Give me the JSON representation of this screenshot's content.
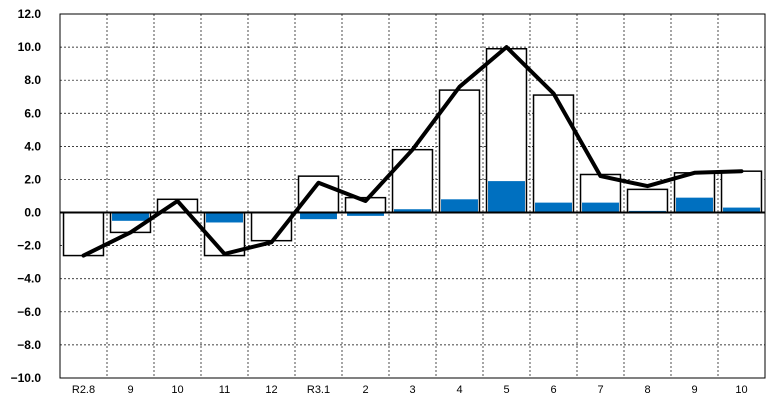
{
  "chart_data": {
    "type": "bar",
    "title": "",
    "xlabel": "",
    "ylabel": "",
    "categories": [
      "R2.8",
      "9",
      "10",
      "11",
      "12",
      "R3.1",
      "2",
      "3",
      "4",
      "5",
      "6",
      "7",
      "8",
      "9",
      "10"
    ],
    "ylim": [
      -10,
      12
    ],
    "yticks": [
      12,
      10,
      8,
      6,
      4,
      2,
      0,
      -2,
      -4,
      -6,
      -8,
      -10
    ],
    "ytick_labels": [
      "12.0",
      "10.0",
      "8.0",
      "6.0",
      "4.0",
      "2.0",
      "0.0",
      "−2.0",
      "−4.0",
      "−6.0",
      "−8.0",
      "−10.0"
    ],
    "grid": true,
    "series": [
      {
        "kind": "bar",
        "color": "#ffffff",
        "values": [
          -2.6,
          -1.2,
          0.8,
          -2.6,
          -1.7,
          2.2,
          0.9,
          3.8,
          7.4,
          9.9,
          7.1,
          2.3,
          1.4,
          2.4,
          2.5
        ]
      },
      {
        "kind": "bar",
        "color": "#0070c0",
        "values": [
          0.0,
          -0.5,
          0.0,
          -0.6,
          0.0,
          -0.4,
          -0.2,
          0.2,
          0.8,
          1.9,
          0.6,
          0.6,
          0.1,
          0.9,
          0.3
        ]
      },
      {
        "kind": "line",
        "color": "#000000",
        "values": [
          -2.6,
          -1.2,
          0.7,
          -2.5,
          -1.8,
          1.8,
          0.7,
          3.8,
          7.6,
          10.0,
          7.2,
          2.2,
          1.6,
          2.4,
          2.5
        ]
      }
    ]
  }
}
